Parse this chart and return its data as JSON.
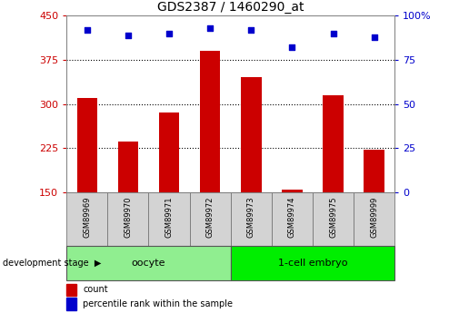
{
  "title": "GDS2387 / 1460290_at",
  "samples": [
    "GSM89969",
    "GSM89970",
    "GSM89971",
    "GSM89972",
    "GSM89973",
    "GSM89974",
    "GSM89975",
    "GSM89999"
  ],
  "counts": [
    310,
    237,
    285,
    390,
    345,
    155,
    315,
    222
  ],
  "percentiles": [
    92,
    89,
    90,
    93,
    92,
    82,
    90,
    88
  ],
  "ylim_left": [
    150,
    450
  ],
  "ylim_right": [
    0,
    100
  ],
  "yticks_left": [
    150,
    225,
    300,
    375,
    450
  ],
  "yticks_right": [
    0,
    25,
    50,
    75,
    100
  ],
  "bar_color": "#cc0000",
  "dot_color": "#0000cc",
  "bar_width": 0.5,
  "groups": [
    {
      "label": "oocyte",
      "indices": [
        0,
        1,
        2,
        3
      ],
      "color": "#90ee90"
    },
    {
      "label": "1-cell embryo",
      "indices": [
        4,
        5,
        6,
        7
      ],
      "color": "#00ee00"
    }
  ],
  "group_label_prefix": "development stage",
  "legend_count_label": "count",
  "legend_pct_label": "percentile rank within the sample",
  "title_color": "#000000",
  "left_axis_color": "#cc0000",
  "right_axis_color": "#0000cc",
  "grid_color": "#000000",
  "xlabel_area_color": "#d3d3d3",
  "figure_width": 5.05,
  "figure_height": 3.45
}
